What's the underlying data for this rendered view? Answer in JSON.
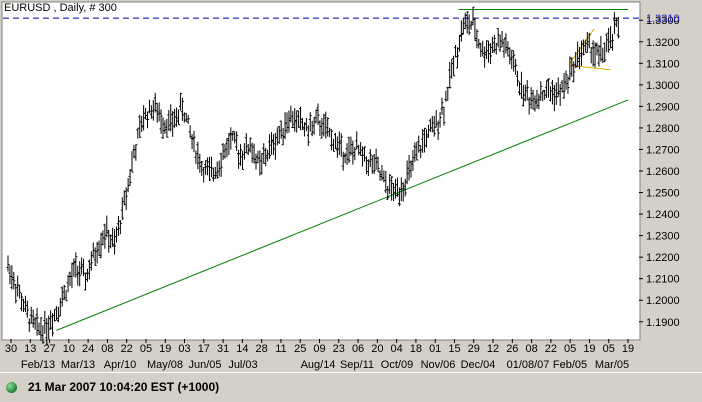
{
  "chart_data": {
    "type": "bar",
    "title": "EURUSD , Daily, # 300",
    "last_value_label": "1.3310",
    "y_ticks": [
      "1.3300",
      "1.3200",
      "1.3100",
      "1.3000",
      "1.2900",
      "1.2800",
      "1.2700",
      "1.2600",
      "1.2500",
      "1.2400",
      "1.2300",
      "1.2200",
      "1.2100",
      "1.2000",
      "1.1900"
    ],
    "ylim": [
      1.182,
      1.338
    ],
    "x_ticks_top": [
      "30",
      "13",
      "27",
      "10",
      "24",
      "08",
      "22",
      "05",
      "19",
      "03",
      "17",
      "31",
      "14",
      "28",
      "11",
      "25",
      "09",
      "23",
      "06",
      "20",
      "04",
      "18",
      "01",
      "15",
      "29",
      "12",
      "26",
      "08",
      "22",
      "05",
      "19",
      "05",
      "19"
    ],
    "x_ticks_bottom": [
      "Feb/13",
      "Mar/13",
      "Apr/10",
      "May/08",
      "Jun/05",
      "Jul/03",
      "Aug/14",
      "Sep/11",
      "Oct/09",
      "Nov/06",
      "Dec/04",
      "01/08/07",
      "Feb/05",
      "Mar/05"
    ],
    "price_path": [
      [
        0,
        1.216
      ],
      [
        10,
        1.205
      ],
      [
        20,
        1.193
      ],
      [
        30,
        1.187
      ],
      [
        40,
        1.188
      ],
      [
        50,
        1.195
      ],
      [
        60,
        1.205
      ],
      [
        70,
        1.215
      ],
      [
        80,
        1.21
      ],
      [
        90,
        1.222
      ],
      [
        100,
        1.232
      ],
      [
        110,
        1.225
      ],
      [
        120,
        1.245
      ],
      [
        130,
        1.268
      ],
      [
        140,
        1.285
      ],
      [
        150,
        1.29
      ],
      [
        160,
        1.283
      ],
      [
        170,
        1.282
      ],
      [
        180,
        1.29
      ],
      [
        190,
        1.275
      ],
      [
        200,
        1.262
      ],
      [
        210,
        1.258
      ],
      [
        220,
        1.266
      ],
      [
        230,
        1.275
      ],
      [
        240,
        1.268
      ],
      [
        250,
        1.272
      ],
      [
        260,
        1.262
      ],
      [
        270,
        1.27
      ],
      [
        280,
        1.277
      ],
      [
        290,
        1.285
      ],
      [
        300,
        1.283
      ],
      [
        310,
        1.279
      ],
      [
        320,
        1.283
      ],
      [
        330,
        1.278
      ],
      [
        340,
        1.272
      ],
      [
        350,
        1.268
      ],
      [
        360,
        1.27
      ],
      [
        370,
        1.265
      ],
      [
        380,
        1.262
      ],
      [
        390,
        1.253
      ],
      [
        400,
        1.25
      ],
      [
        410,
        1.255
      ],
      [
        420,
        1.265
      ],
      [
        430,
        1.275
      ],
      [
        440,
        1.28
      ],
      [
        450,
        1.29
      ],
      [
        460,
        1.31
      ],
      [
        470,
        1.328
      ],
      [
        480,
        1.328
      ],
      [
        490,
        1.315
      ],
      [
        500,
        1.318
      ],
      [
        510,
        1.32
      ],
      [
        520,
        1.312
      ],
      [
        530,
        1.298
      ],
      [
        540,
        1.293
      ],
      [
        550,
        1.296
      ],
      [
        560,
        1.297
      ],
      [
        570,
        1.296
      ],
      [
        580,
        1.305
      ],
      [
        590,
        1.315
      ],
      [
        600,
        1.318
      ],
      [
        610,
        1.313
      ],
      [
        620,
        1.318
      ],
      [
        630,
        1.329
      ]
    ],
    "trendlines": [
      {
        "color": "#008000",
        "from": [
          50,
          1.186
        ],
        "to": [
          640,
          1.293
        ]
      },
      {
        "color": "#008000",
        "from": [
          465,
          1.335
        ],
        "to": [
          640,
          1.335
        ]
      },
      {
        "color": "#e0b000",
        "from": [
          580,
          1.31
        ],
        "to": [
          605,
          1.326
        ]
      },
      {
        "color": "#e0b000",
        "from": [
          580,
          1.309
        ],
        "to": [
          622,
          1.307
        ]
      }
    ],
    "reference_line": {
      "value": 1.331,
      "color": "#0000a0",
      "style": "dashed"
    }
  },
  "status": {
    "datetime": "21 Mar 2007 10:04:20",
    "timezone": "EST (+1000)"
  }
}
